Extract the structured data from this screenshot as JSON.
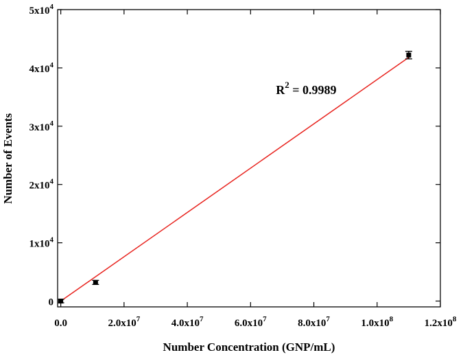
{
  "chart_data": {
    "type": "scatter",
    "title": "",
    "xlabel": "Number Concentration (GNP/mL)",
    "ylabel": "Number of Events",
    "xlim": [
      -1000000.0,
      120000000.0
    ],
    "ylim": [
      -1000,
      50000
    ],
    "x_ticks": [
      {
        "value": 0,
        "label": "0.0",
        "exp": ""
      },
      {
        "value": 20000000.0,
        "label": "2.0x10",
        "exp": "7"
      },
      {
        "value": 40000000.0,
        "label": "4.0x10",
        "exp": "7"
      },
      {
        "value": 60000000.0,
        "label": "6.0x10",
        "exp": "7"
      },
      {
        "value": 80000000.0,
        "label": "8.0x10",
        "exp": "7"
      },
      {
        "value": 100000000.0,
        "label": "1.0x10",
        "exp": "8"
      },
      {
        "value": 120000000.0,
        "label": "1.2x10",
        "exp": "8"
      }
    ],
    "y_ticks": [
      {
        "value": 0,
        "label": "0",
        "exp": ""
      },
      {
        "value": 10000,
        "label": "1x10",
        "exp": "4"
      },
      {
        "value": 20000,
        "label": "2x10",
        "exp": "4"
      },
      {
        "value": 30000,
        "label": "3x10",
        "exp": "4"
      },
      {
        "value": 40000,
        "label": "4x10",
        "exp": "4"
      },
      {
        "value": 50000,
        "label": "5x10",
        "exp": "4"
      }
    ],
    "series": [
      {
        "points": [
          {
            "x": 0,
            "y": 0,
            "err": 300
          },
          {
            "x": 11000000.0,
            "y": 3200,
            "err": 350
          },
          {
            "x": 110000000.0,
            "y": 42200,
            "err": 650
          }
        ]
      }
    ],
    "fit_line": {
      "x": [
        0,
        110000000.0
      ],
      "y": [
        0,
        41800
      ],
      "color": "#e8231e"
    },
    "annotation": {
      "base": "R",
      "sup": "2",
      "text": " = 0.9989",
      "x": 68000000.0,
      "y": 35500
    },
    "colors": {
      "marker": "#000000",
      "axis": "#000000",
      "fit": "#e8231e"
    }
  }
}
